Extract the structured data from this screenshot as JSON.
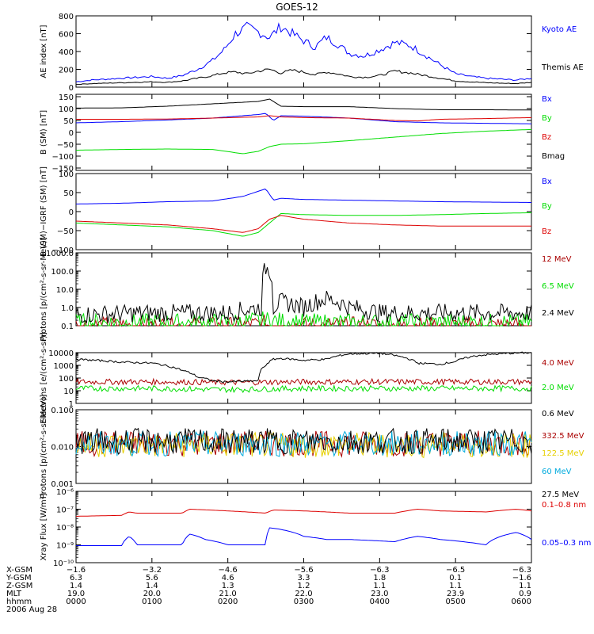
{
  "title": "GOES-12",
  "colors": {
    "blue": "#0000ff",
    "black": "#000000",
    "green": "#00dd00",
    "red": "#dd0000",
    "darkred": "#aa0000",
    "cyan": "#00aadd",
    "yellow": "#e6d000"
  },
  "chart_data": [
    {
      "type": "line",
      "ylabel": "AE index [nT]",
      "ylim": [
        0,
        800
      ],
      "yticks": [
        "800",
        "600",
        "400",
        "200",
        "0"
      ],
      "yvals": [
        800,
        600,
        400,
        200,
        0
      ],
      "series": [
        {
          "name": "Kyoto AE",
          "color": "#0000ff",
          "x": [
            0,
            20,
            40,
            60,
            80,
            100,
            120,
            140,
            160,
            180,
            195,
            210,
            225,
            240,
            255,
            270,
            285,
            300,
            315,
            330,
            345,
            360,
            380,
            400,
            420,
            440,
            460,
            480,
            500,
            520,
            540,
            560,
            580,
            600
          ],
          "values": [
            60,
            80,
            90,
            100,
            110,
            120,
            100,
            130,
            200,
            300,
            420,
            600,
            670,
            620,
            560,
            680,
            600,
            520,
            450,
            560,
            480,
            380,
            350,
            420,
            500,
            470,
            360,
            250,
            150,
            120,
            100,
            90,
            80,
            100
          ]
        },
        {
          "name": "Themis AE",
          "color": "#000000",
          "x": [
            0,
            20,
            40,
            60,
            80,
            100,
            120,
            140,
            160,
            180,
            195,
            210,
            225,
            240,
            255,
            270,
            285,
            300,
            315,
            330,
            345,
            360,
            380,
            400,
            420,
            440,
            460,
            480,
            500,
            520,
            540,
            560,
            580,
            600
          ],
          "values": [
            30,
            40,
            45,
            50,
            55,
            60,
            55,
            70,
            100,
            130,
            160,
            170,
            150,
            180,
            200,
            160,
            190,
            170,
            140,
            170,
            150,
            120,
            110,
            130,
            180,
            160,
            130,
            100,
            70,
            60,
            50,
            45,
            40,
            55
          ]
        }
      ]
    },
    {
      "type": "line",
      "ylabel": "B (SM) [nT]",
      "ylim": [
        -160,
        160
      ],
      "yticks": [
        "150",
        "100",
        "50",
        "0",
        "−50",
        "−100",
        "−150"
      ],
      "yvals": [
        150,
        100,
        50,
        0,
        -50,
        -100,
        -150
      ],
      "series": [
        {
          "name": "Bx",
          "color": "#0000ff",
          "x": [
            0,
            60,
            120,
            180,
            240,
            250,
            260,
            270,
            300,
            360,
            420,
            480,
            540,
            600
          ],
          "values": [
            40,
            45,
            52,
            60,
            75,
            80,
            50,
            70,
            68,
            60,
            45,
            40,
            38,
            36
          ]
        },
        {
          "name": "By",
          "color": "#00dd00",
          "x": [
            0,
            60,
            120,
            180,
            220,
            240,
            255,
            270,
            300,
            360,
            420,
            480,
            540,
            600
          ],
          "values": [
            -75,
            -72,
            -70,
            -72,
            -90,
            -80,
            -60,
            -50,
            -48,
            -35,
            -20,
            -5,
            5,
            12
          ]
        },
        {
          "name": "Bz",
          "color": "#dd0000",
          "x": [
            0,
            60,
            120,
            180,
            240,
            255,
            270,
            300,
            360,
            420,
            450,
            480,
            540,
            600
          ],
          "values": [
            55,
            55,
            56,
            60,
            65,
            70,
            65,
            62,
            60,
            50,
            48,
            55,
            58,
            62
          ]
        },
        {
          "name": "Bmag",
          "color": "#000000",
          "x": [
            0,
            60,
            120,
            180,
            240,
            255,
            270,
            300,
            360,
            420,
            480,
            540,
            600
          ],
          "values": [
            102,
            103,
            110,
            120,
            130,
            140,
            110,
            108,
            108,
            100,
            95,
            95,
            94
          ]
        }
      ]
    },
    {
      "type": "line",
      "ylabel": "B (SM)−IGRF (SM) [nT]",
      "ylim": [
        -100,
        100
      ],
      "yticks": [
        "100",
        "50",
        "0",
        "−50",
        "−100"
      ],
      "yvals": [
        100,
        50,
        0,
        -50,
        -100
      ],
      "series": [
        {
          "name": "Bx",
          "color": "#0000ff",
          "x": [
            0,
            60,
            120,
            180,
            220,
            250,
            260,
            270,
            300,
            360,
            420,
            480,
            540,
            600
          ],
          "values": [
            20,
            22,
            26,
            28,
            40,
            60,
            30,
            35,
            32,
            30,
            28,
            26,
            25,
            24
          ]
        },
        {
          "name": "By",
          "color": "#00dd00",
          "x": [
            0,
            60,
            120,
            180,
            220,
            240,
            255,
            270,
            300,
            360,
            420,
            480,
            540,
            600
          ],
          "values": [
            -30,
            -35,
            -40,
            -50,
            -65,
            -55,
            -30,
            -5,
            -8,
            -10,
            -10,
            -8,
            -5,
            -3
          ]
        },
        {
          "name": "Bz",
          "color": "#dd0000",
          "x": [
            0,
            60,
            120,
            180,
            220,
            240,
            255,
            270,
            300,
            360,
            420,
            480,
            540,
            600
          ],
          "values": [
            -25,
            -30,
            -35,
            -45,
            -55,
            -45,
            -20,
            -10,
            -20,
            -30,
            -35,
            -38,
            -38,
            -38
          ]
        }
      ]
    },
    {
      "type": "line",
      "ylog": true,
      "ylabel": "Protons [p/(cm²-s-sr-MeV)]",
      "ylim": [
        0.1,
        1000
      ],
      "yticks": [
        "1000.0",
        "100.0",
        "10.0",
        "1.0",
        "0.1"
      ],
      "yvals": [
        1000,
        100,
        10,
        1,
        0.1
      ],
      "series": [
        {
          "name": "12 MeV",
          "color": "#aa0000",
          "x": [
            0,
            100,
            200,
            250,
            300,
            400,
            500,
            600
          ],
          "values": [
            0.1,
            0.1,
            0.1,
            0.12,
            0.1,
            0.1,
            0.1,
            0.1
          ]
        },
        {
          "name": "6.5 MeV",
          "color": "#00dd00",
          "x": [
            0,
            100,
            200,
            250,
            300,
            400,
            500,
            600
          ],
          "values": [
            0.15,
            0.15,
            0.15,
            0.2,
            0.15,
            0.15,
            0.15,
            0.15
          ]
        },
        {
          "name": "2.4 MeV",
          "color": "#000000",
          "x": [
            0,
            100,
            200,
            245,
            250,
            255,
            260,
            270,
            300,
            330,
            360,
            400,
            500,
            600
          ],
          "values": [
            0.4,
            0.5,
            0.5,
            1,
            150,
            120,
            1,
            2,
            1,
            3,
            1,
            0.5,
            0.5,
            0.5
          ]
        }
      ]
    },
    {
      "type": "line",
      "ylog": true,
      "ylabel": "Electrons [e/(cm²-s-sr)]",
      "ylim": [
        1,
        10000
      ],
      "yticks": [
        "10000",
        "1000",
        "100",
        "10",
        "1"
      ],
      "yvals": [
        10000,
        1000,
        100,
        10,
        1
      ],
      "series": [
        {
          "name": "4.0 MeV",
          "color": "#aa0000",
          "x": [
            0,
            100,
            200,
            300,
            400,
            500,
            600
          ],
          "values": [
            50,
            50,
            45,
            50,
            50,
            50,
            50
          ]
        },
        {
          "name": "2.0 MeV",
          "color": "#00dd00",
          "x": [
            0,
            100,
            200,
            300,
            400,
            500,
            600
          ],
          "values": [
            15,
            15,
            12,
            15,
            15,
            15,
            15
          ]
        },
        {
          "name": "0.6 MeV",
          "color": "#000000",
          "x": [
            0,
            60,
            100,
            120,
            140,
            160,
            180,
            200,
            240,
            250,
            260,
            270,
            300,
            330,
            360,
            400,
            420,
            450,
            480,
            500,
            530,
            570,
            600
          ],
          "values": [
            3000,
            1800,
            1500,
            900,
            400,
            120,
            60,
            50,
            60,
            1000,
            3000,
            3500,
            2500,
            3000,
            8000,
            9000,
            6000,
            1500,
            1200,
            2000,
            6000,
            9000,
            10000
          ]
        }
      ]
    },
    {
      "type": "line",
      "ylog": true,
      "ylabel": "Protons [p/(cm²-s-sr-MeV)]",
      "ylim": [
        0.001,
        0.1
      ],
      "yticks": [
        "0.100",
        "0.010",
        "0.001"
      ],
      "yvals": [
        0.1,
        0.01,
        0.001
      ],
      "series": [
        {
          "name": "332.5 MeV",
          "color": "#aa0000",
          "x": [
            0,
            600
          ],
          "values": [
            0.012,
            0.012
          ]
        },
        {
          "name": "122.5 MeV",
          "color": "#e6d000",
          "x": [
            0,
            600
          ],
          "values": [
            0.011,
            0.011
          ]
        },
        {
          "name": "60 MeV",
          "color": "#00aadd",
          "x": [
            0,
            600
          ],
          "values": [
            0.012,
            0.012
          ]
        },
        {
          "name": "27.5 MeV",
          "color": "#000000",
          "x": [
            0,
            600
          ],
          "values": [
            0.014,
            0.014
          ]
        }
      ]
    },
    {
      "type": "line",
      "ylog": true,
      "ylabel": "Xray Flux [W/m²]",
      "ylim": [
        1e-10,
        1e-06
      ],
      "yticks": [
        "10⁻⁶",
        "10⁻⁷",
        "10⁻⁸",
        "10⁻⁹",
        "10⁻¹⁰"
      ],
      "yvals": [
        1e-06,
        1e-07,
        1e-08,
        1e-09,
        1e-10
      ],
      "series": [
        {
          "name": "0.1–0.8 nm",
          "color": "#dd0000",
          "x": [
            0,
            60,
            70,
            80,
            100,
            140,
            150,
            200,
            250,
            260,
            300,
            360,
            420,
            450,
            480,
            540,
            580,
            600
          ],
          "values": [
            4e-08,
            4.5e-08,
            7e-08,
            6e-08,
            6e-08,
            6e-08,
            1e-07,
            8e-08,
            6e-08,
            9e-08,
            8e-08,
            6e-08,
            6e-08,
            1e-07,
            8e-08,
            7e-08,
            1e-07,
            8e-08
          ]
        },
        {
          "name": "0.05–0.3 nm",
          "color": "#0000ff",
          "x": [
            0,
            60,
            70,
            80,
            100,
            140,
            150,
            170,
            200,
            250,
            255,
            265,
            300,
            330,
            360,
            420,
            450,
            480,
            540,
            580,
            600
          ],
          "values": [
            9e-10,
            9e-10,
            3e-09,
            1e-09,
            1e-09,
            1e-09,
            4e-09,
            2e-09,
            1e-09,
            1e-09,
            9e-09,
            8e-09,
            3e-09,
            2e-09,
            2e-09,
            1.5e-09,
            3e-09,
            2e-09,
            1e-09,
            5e-09,
            2e-09
          ]
        }
      ]
    }
  ],
  "xaxis": {
    "ticks_x": [
      0,
      100,
      200,
      300,
      400,
      500,
      600
    ],
    "rows": [
      {
        "label": "X-GSM",
        "values": [
          "−1.6",
          "−3.2",
          "−4.6",
          "−5.6",
          "−6.3",
          "−6.5",
          "−6.3"
        ]
      },
      {
        "label": "Y-GSM",
        "values": [
          "6.3",
          "5.6",
          "4.6",
          "3.3",
          "1.8",
          "0.1",
          "−1.6"
        ]
      },
      {
        "label": "Z-GSM",
        "values": [
          "1.4",
          "1.4",
          "1.3",
          "1.2",
          "1.1",
          "1.1",
          "1.1"
        ]
      },
      {
        "label": "MLT",
        "values": [
          "19.0",
          "20.0",
          "21.0",
          "22.0",
          "23.0",
          "23.9",
          "0.9"
        ]
      },
      {
        "label": "hhmm",
        "values": [
          "0000",
          "0100",
          "0200",
          "0300",
          "0400",
          "0500",
          "0600"
        ]
      }
    ],
    "date": "2006 Aug 28"
  }
}
